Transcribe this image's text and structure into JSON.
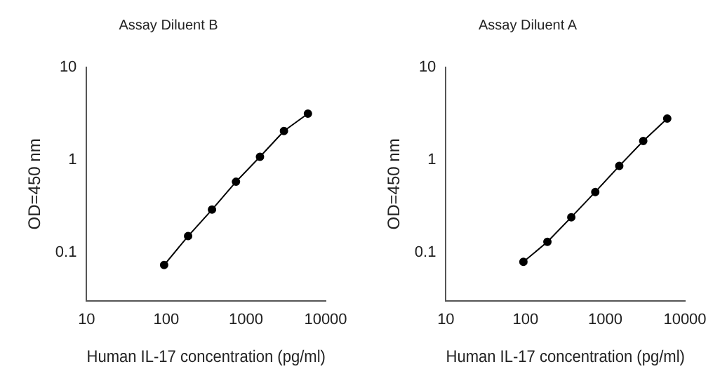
{
  "chart_data": [
    {
      "type": "line",
      "title": "Assay Diluent B",
      "xlabel": "Human IL-17 concentration (pg/ml)",
      "ylabel": "OD=450 nm",
      "log": "xy",
      "marker": "circle",
      "color": "#000000",
      "x": [
        94,
        188,
        375,
        750,
        1500,
        3000,
        6000
      ],
      "values": [
        0.073,
        0.15,
        0.29,
        0.58,
        1.08,
        2.05,
        3.16
      ],
      "xlim": [
        10,
        10000
      ],
      "ylim": [
        0.03,
        10
      ],
      "xticks": [
        10,
        100,
        1000,
        10000
      ],
      "yticks": [
        0.1,
        1,
        10
      ]
    },
    {
      "type": "line",
      "title": "Assay Diluent A",
      "xlabel": "Human IL-17 concentration (pg/ml)",
      "ylabel": "OD=450 nm",
      "log": "xy",
      "marker": "circle",
      "color": "#000000",
      "x": [
        94,
        188,
        375,
        750,
        1500,
        3000,
        6000
      ],
      "values": [
        0.079,
        0.13,
        0.24,
        0.45,
        0.86,
        1.6,
        2.8
      ],
      "xlim": [
        10,
        10000
      ],
      "ylim": [
        0.03,
        10
      ],
      "xticks": [
        10,
        100,
        1000,
        10000
      ],
      "yticks": [
        0.1,
        1,
        10
      ]
    }
  ]
}
